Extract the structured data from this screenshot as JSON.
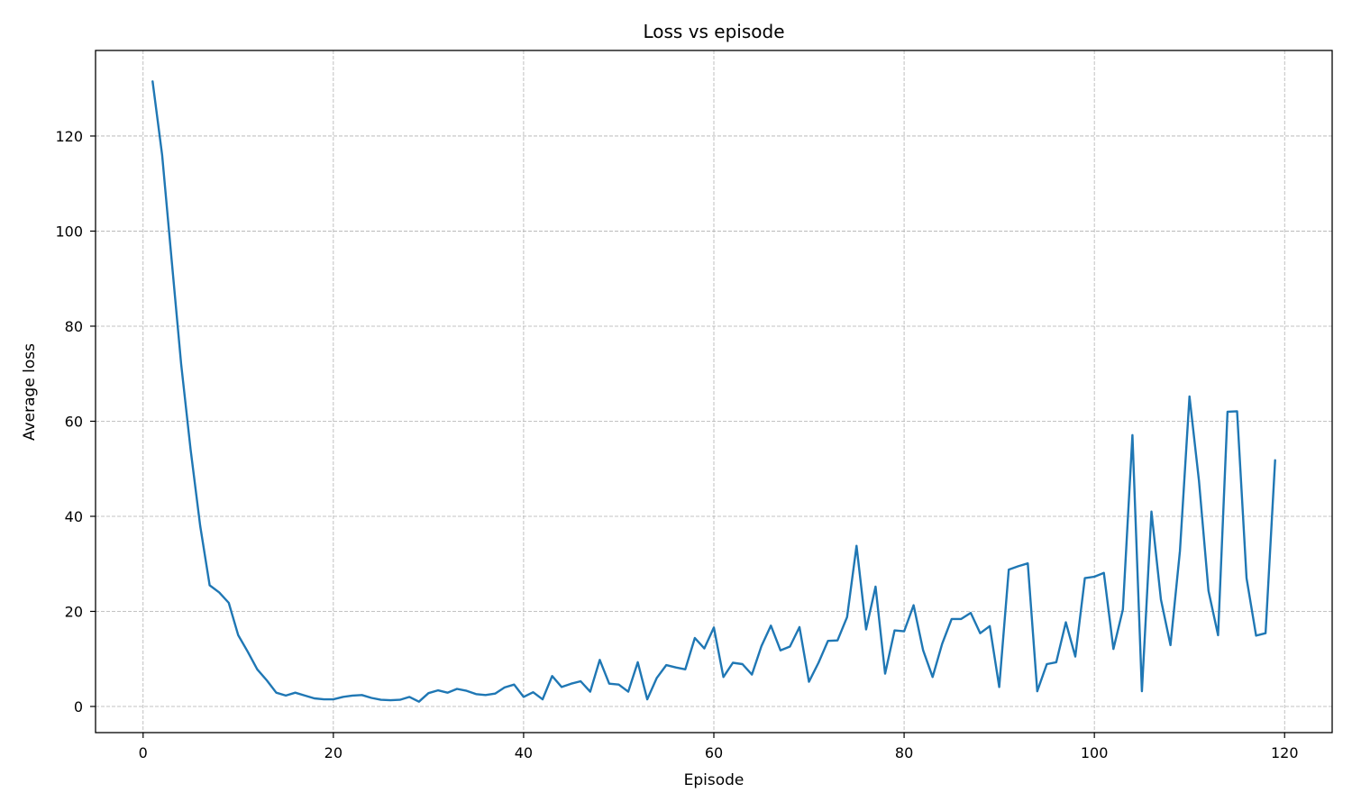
{
  "chart_data": {
    "type": "line",
    "title": "Loss vs episode",
    "xlabel": "Episode",
    "ylabel": "Average loss",
    "xlim": [
      -5,
      125
    ],
    "ylim": [
      -5.5,
      138
    ],
    "xticks": [
      0,
      20,
      40,
      60,
      80,
      100,
      120
    ],
    "yticks": [
      0,
      20,
      40,
      60,
      80,
      100,
      120
    ],
    "xtick_labels": [
      "0",
      "20",
      "40",
      "60",
      "80",
      "100",
      "120"
    ],
    "ytick_labels": [
      "0",
      "20",
      "40",
      "60",
      "80",
      "100",
      "120"
    ],
    "grid": true,
    "series": [
      {
        "color": "#1f77b4",
        "x": [
          1,
          2,
          3,
          4,
          5,
          6,
          7,
          8,
          9,
          10,
          11,
          12,
          13,
          14,
          15,
          16,
          17,
          18,
          19,
          20,
          21,
          22,
          23,
          24,
          25,
          26,
          27,
          28,
          29,
          30,
          31,
          32,
          33,
          34,
          35,
          36,
          37,
          38,
          39,
          40,
          41,
          42,
          43,
          44,
          45,
          46,
          47,
          48,
          49,
          50,
          51,
          52,
          53,
          54,
          55,
          56,
          57,
          58,
          59,
          60,
          61,
          62,
          63,
          64,
          65,
          66,
          67,
          68,
          69,
          70,
          71,
          72,
          73,
          74,
          75,
          76,
          77,
          78,
          79,
          80,
          81,
          82,
          83,
          84,
          85,
          86,
          87,
          88,
          89,
          90,
          91,
          92,
          93,
          94,
          95,
          96,
          97,
          98,
          99,
          100,
          101,
          102,
          103,
          104,
          105,
          106,
          107,
          108,
          109,
          110,
          111,
          112,
          113,
          114,
          115,
          116,
          117,
          118,
          119
        ],
        "y": [
          131.5,
          116,
          94,
          72,
          54,
          38,
          25.5,
          24,
          21.8,
          15,
          11.5,
          7.8,
          5.5,
          2.9,
          2.3,
          2.9,
          2.3,
          1.7,
          1.5,
          1.5,
          2,
          2.3,
          2.4,
          1.8,
          1.4,
          1.3,
          1.4,
          2,
          1,
          2.8,
          3.4,
          2.9,
          3.7,
          3.3,
          2.6,
          2.4,
          2.7,
          4,
          4.6,
          2,
          3,
          1.5,
          6.4,
          4.1,
          4.8,
          5.3,
          3.1,
          9.8,
          4.8,
          4.6,
          3.1,
          9.3,
          1.5,
          6,
          8.7,
          8.2,
          7.8,
          14.4,
          12.2,
          16.6,
          6.2,
          9.2,
          8.9,
          6.7,
          12.7,
          17,
          11.8,
          12.6,
          16.7,
          5.2,
          9.2,
          13.8,
          13.9,
          18.8,
          33.8,
          16.2,
          25.2,
          6.9,
          16,
          15.8,
          21.3,
          11.8,
          6.2,
          13.2,
          18.4,
          18.4,
          19.7,
          15.4,
          16.9,
          4.1,
          28.8,
          29.5,
          30.1,
          3.2,
          8.9,
          9.3,
          17.7,
          10.5,
          27,
          27.3,
          28.1,
          12.1,
          20.4,
          57.1,
          3.2,
          41,
          22.5,
          12.9,
          32.7,
          65.2,
          47.5,
          24.3,
          15,
          62,
          62.1,
          27,
          14.9,
          15.4,
          51.8
        ]
      }
    ]
  }
}
